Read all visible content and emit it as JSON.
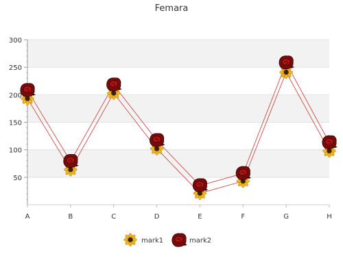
{
  "chart_data": {
    "type": "line",
    "title": "Femara",
    "xlabel": "",
    "ylabel": "",
    "categories": [
      "A",
      "B",
      "C",
      "D",
      "E",
      "F",
      "G",
      "H"
    ],
    "ylim": [
      0,
      300
    ],
    "yticks": [
      50,
      100,
      150,
      200,
      250,
      300
    ],
    "grid": "horizontal alternating bands",
    "legend_position": "bottom",
    "series": [
      {
        "name": "mark1",
        "values": [
          193,
          64,
          203,
          102,
          21,
          43,
          241,
          98
        ],
        "color": "#cc3333",
        "marker": "sunflower"
      },
      {
        "name": "mark2",
        "values": [
          208,
          79,
          218,
          117,
          35,
          57,
          258,
          113
        ],
        "color": "#cc3333",
        "marker": "rose"
      }
    ]
  }
}
